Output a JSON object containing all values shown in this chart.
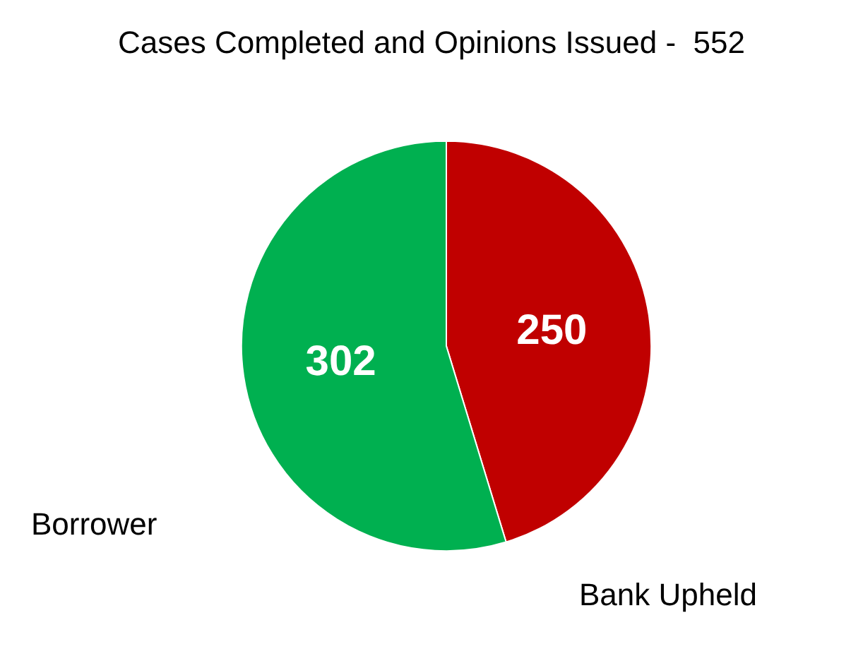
{
  "chart_data": {
    "type": "pie",
    "title": "Cases Completed and Opinions Issued -  552",
    "categories": [
      "Bank Upheld",
      "Borrower"
    ],
    "values": [
      250,
      302
    ],
    "colors": [
      "#c00000",
      "#00b050"
    ],
    "data_labels": true
  }
}
